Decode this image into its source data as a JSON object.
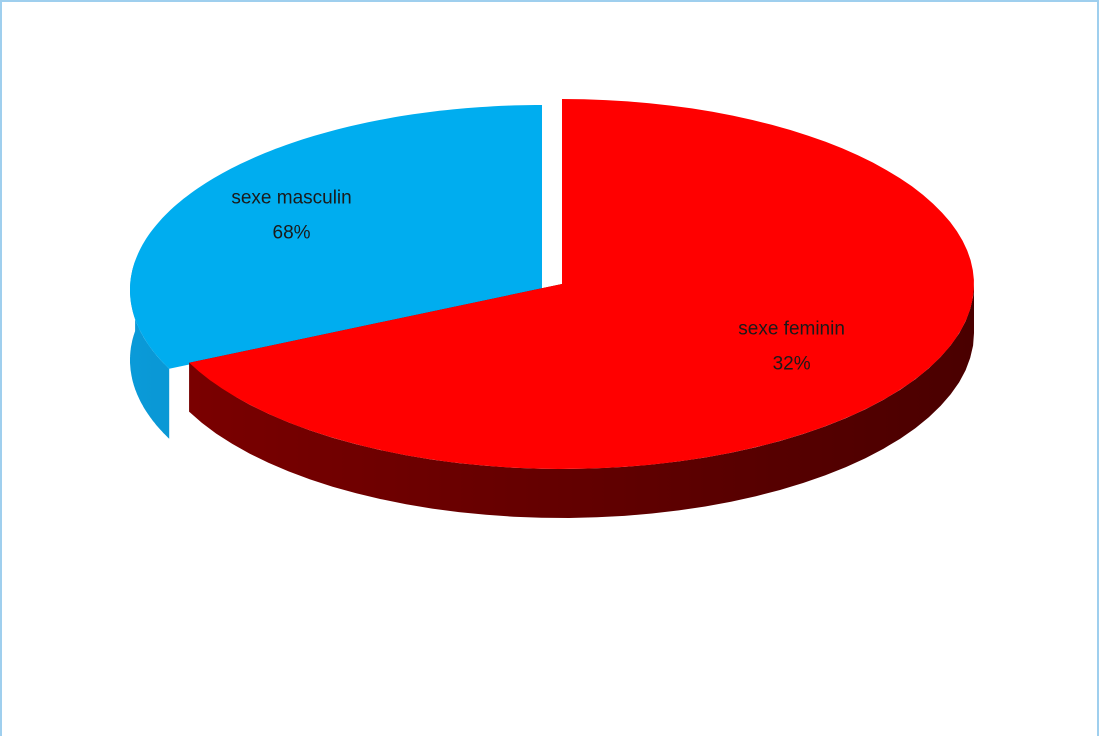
{
  "chart_data": {
    "type": "pie",
    "style": "3d-exploded",
    "slices": [
      {
        "label": "sexe masculin",
        "value": 68,
        "percent_label": "68%",
        "color": "#00adef"
      },
      {
        "label": "sexe feminin",
        "value": 32,
        "percent_label": "32%",
        "color": "#ff0000"
      }
    ],
    "legend": "none"
  }
}
